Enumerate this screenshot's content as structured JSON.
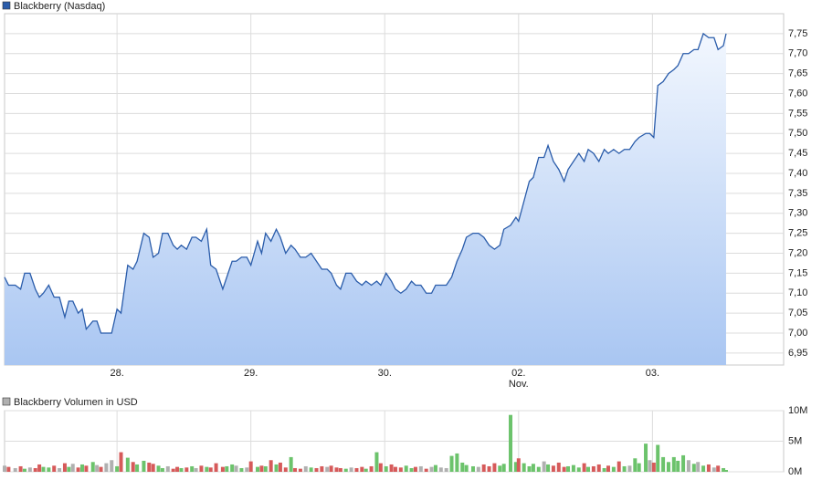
{
  "chart_data": [
    {
      "type": "line",
      "title": "Blackberry (Nasdaq)",
      "color": "#2a5caa",
      "fill_top": "#f2f7fe",
      "fill_bottom": "#a9c6f2",
      "month_label": "Nov.",
      "x": [
        -0.84,
        -0.81,
        -0.76,
        -0.72,
        -0.69,
        -0.65,
        -0.61,
        -0.58,
        -0.55,
        -0.51,
        -0.47,
        -0.43,
        -0.39,
        -0.36,
        -0.33,
        -0.29,
        -0.26,
        -0.23,
        -0.18,
        -0.15,
        -0.12,
        -0.08,
        -0.04,
        0,
        0.03,
        0.08,
        0.12,
        0.15,
        0.2,
        0.24,
        0.27,
        0.31,
        0.34,
        0.38,
        0.42,
        0.45,
        0.48,
        0.52,
        0.56,
        0.59,
        0.63,
        0.67,
        0.7,
        0.74,
        0.79,
        0.82,
        0.86,
        0.89,
        0.93,
        0.97,
        1,
        1.05,
        1.08,
        1.11,
        1.15,
        1.19,
        1.22,
        1.26,
        1.3,
        1.33,
        1.37,
        1.41,
        1.45,
        1.49,
        1.53,
        1.57,
        1.6,
        1.64,
        1.67,
        1.71,
        1.75,
        1.79,
        1.83,
        1.86,
        1.9,
        1.94,
        1.97,
        2.01,
        2.05,
        2.08,
        2.12,
        2.16,
        2.2,
        2.23,
        2.27,
        2.31,
        2.35,
        2.38,
        2.42,
        2.46,
        2.5,
        2.54,
        2.58,
        2.61,
        2.66,
        2.7,
        2.74,
        2.78,
        2.82,
        2.86,
        2.89,
        2.94,
        2.98,
        3,
        3.04,
        3.08,
        3.11,
        3.15,
        3.19,
        3.22,
        3.26,
        3.3,
        3.34,
        3.37,
        3.41,
        3.45,
        3.49,
        3.52,
        3.56,
        3.6,
        3.64,
        3.67,
        3.71,
        3.75,
        3.79,
        3.83,
        3.87,
        3.9,
        3.95,
        3.98,
        4.01,
        4.04,
        4.08,
        4.12,
        4.16,
        4.19,
        4.23,
        4.27,
        4.31,
        4.34,
        4.38,
        4.42,
        4.46,
        4.49,
        4.53,
        4.55
      ],
      "values": [
        7.14,
        7.12,
        7.12,
        7.11,
        7.15,
        7.15,
        7.11,
        7.09,
        7.1,
        7.12,
        7.09,
        7.09,
        7.04,
        7.08,
        7.08,
        7.05,
        7.06,
        7.01,
        7.03,
        7.03,
        7.0,
        7.0,
        7.0,
        7.06,
        7.05,
        7.17,
        7.16,
        7.18,
        7.25,
        7.24,
        7.19,
        7.2,
        7.25,
        7.25,
        7.22,
        7.21,
        7.22,
        7.21,
        7.24,
        7.24,
        7.23,
        7.26,
        7.17,
        7.16,
        7.11,
        7.14,
        7.18,
        7.18,
        7.19,
        7.19,
        7.17,
        7.23,
        7.2,
        7.25,
        7.23,
        7.26,
        7.24,
        7.2,
        7.22,
        7.21,
        7.19,
        7.19,
        7.2,
        7.18,
        7.16,
        7.16,
        7.15,
        7.12,
        7.11,
        7.15,
        7.15,
        7.13,
        7.12,
        7.13,
        7.12,
        7.13,
        7.12,
        7.15,
        7.13,
        7.11,
        7.1,
        7.11,
        7.13,
        7.12,
        7.12,
        7.1,
        7.1,
        7.12,
        7.12,
        7.12,
        7.14,
        7.18,
        7.21,
        7.24,
        7.25,
        7.25,
        7.24,
        7.22,
        7.21,
        7.22,
        7.26,
        7.27,
        7.29,
        7.28,
        7.33,
        7.38,
        7.39,
        7.44,
        7.44,
        7.47,
        7.43,
        7.41,
        7.38,
        7.41,
        7.43,
        7.45,
        7.43,
        7.46,
        7.45,
        7.43,
        7.46,
        7.45,
        7.46,
        7.45,
        7.46,
        7.46,
        7.48,
        7.49,
        7.5,
        7.5,
        7.49,
        7.62,
        7.63,
        7.65,
        7.66,
        7.67,
        7.7,
        7.7,
        7.71,
        7.71,
        7.75,
        7.74,
        7.74,
        7.71,
        7.72,
        7.75
      ],
      "xlim": [
        -0.84,
        4.98
      ],
      "xticks": [
        {
          "value": 0,
          "label": "28."
        },
        {
          "value": 1,
          "label": "29."
        },
        {
          "value": 2,
          "label": "30."
        },
        {
          "value": 3,
          "label": "02."
        },
        {
          "value": 4,
          "label": "03."
        }
      ],
      "ylim": [
        6.92,
        7.8
      ],
      "yticks": [
        {
          "value": 6.95,
          "label": "6,95"
        },
        {
          "value": 7.0,
          "label": "7,00"
        },
        {
          "value": 7.05,
          "label": "7,05"
        },
        {
          "value": 7.1,
          "label": "7,10"
        },
        {
          "value": 7.15,
          "label": "7,15"
        },
        {
          "value": 7.2,
          "label": "7,20"
        },
        {
          "value": 7.25,
          "label": "7,25"
        },
        {
          "value": 7.3,
          "label": "7,30"
        },
        {
          "value": 7.35,
          "label": "7,35"
        },
        {
          "value": 7.4,
          "label": "7,40"
        },
        {
          "value": 7.45,
          "label": "7,45"
        },
        {
          "value": 7.5,
          "label": "7,50"
        },
        {
          "value": 7.55,
          "label": "7,55"
        },
        {
          "value": 7.6,
          "label": "7,60"
        },
        {
          "value": 7.65,
          "label": "7,65"
        },
        {
          "value": 7.7,
          "label": "7,70"
        },
        {
          "value": 7.75,
          "label": "7,75"
        }
      ],
      "grid": true
    },
    {
      "type": "bar",
      "title": "Blackberry Volumen in USD",
      "color": "#b0b0b0",
      "up_color": "#6cc36c",
      "down_color": "#d65a5a",
      "values": [
        1000000,
        800000,
        600000,
        900000,
        500000,
        700000,
        600000,
        1200000,
        800000,
        700000,
        1000000,
        600000,
        1400000,
        800000,
        1300000,
        700000,
        1200000,
        1000000,
        1600000,
        1100000,
        800000,
        1400000,
        1900000,
        900000,
        3200000,
        2300000,
        1600000,
        1200000,
        1800000,
        1500000,
        1300000,
        1000000,
        600000,
        900000,
        500000,
        800000,
        600000,
        700000,
        900000,
        600000,
        1000000,
        800000,
        700000,
        1400000,
        800000,
        900000,
        1200000,
        1000000,
        600000,
        700000,
        1700000,
        800000,
        1000000,
        900000,
        1900000,
        1200000,
        1500000,
        700000,
        2400000,
        600000,
        500000,
        900000,
        700000,
        600000,
        900000,
        800000,
        1000000,
        700000,
        600000,
        500000,
        700000,
        600000,
        800000,
        500000,
        900000,
        3200000,
        1400000,
        900000,
        1200000,
        800000,
        700000,
        1000000,
        600000,
        800000,
        900000,
        500000,
        800000,
        1100000,
        700000,
        600000,
        2600000,
        3000000,
        1500000,
        1100000,
        900000,
        800000,
        1200000,
        900000,
        1400000,
        1000000,
        1300000,
        9300000,
        1600000,
        2200000,
        1400000,
        900000,
        1300000,
        800000,
        1700000,
        1200000,
        1000000,
        1500000,
        800000,
        900000,
        1100000,
        700000,
        1400000,
        800000,
        900000,
        1200000,
        600000,
        1000000,
        800000,
        1700000,
        900000,
        1000000,
        2200000,
        1400000,
        4600000,
        1900000,
        1500000,
        4400000,
        2400000,
        1600000,
        2400000,
        1800000,
        2700000,
        1900000,
        1300000,
        1600000,
        1000000,
        1200000,
        700000,
        1000000,
        600000,
        300000
      ],
      "ylim": [
        0,
        10000000
      ],
      "yticks": [
        {
          "value": 0,
          "label": "0M"
        },
        {
          "value": 5000000,
          "label": "5M"
        },
        {
          "value": 10000000,
          "label": "10M"
        }
      ],
      "grid": true
    }
  ]
}
